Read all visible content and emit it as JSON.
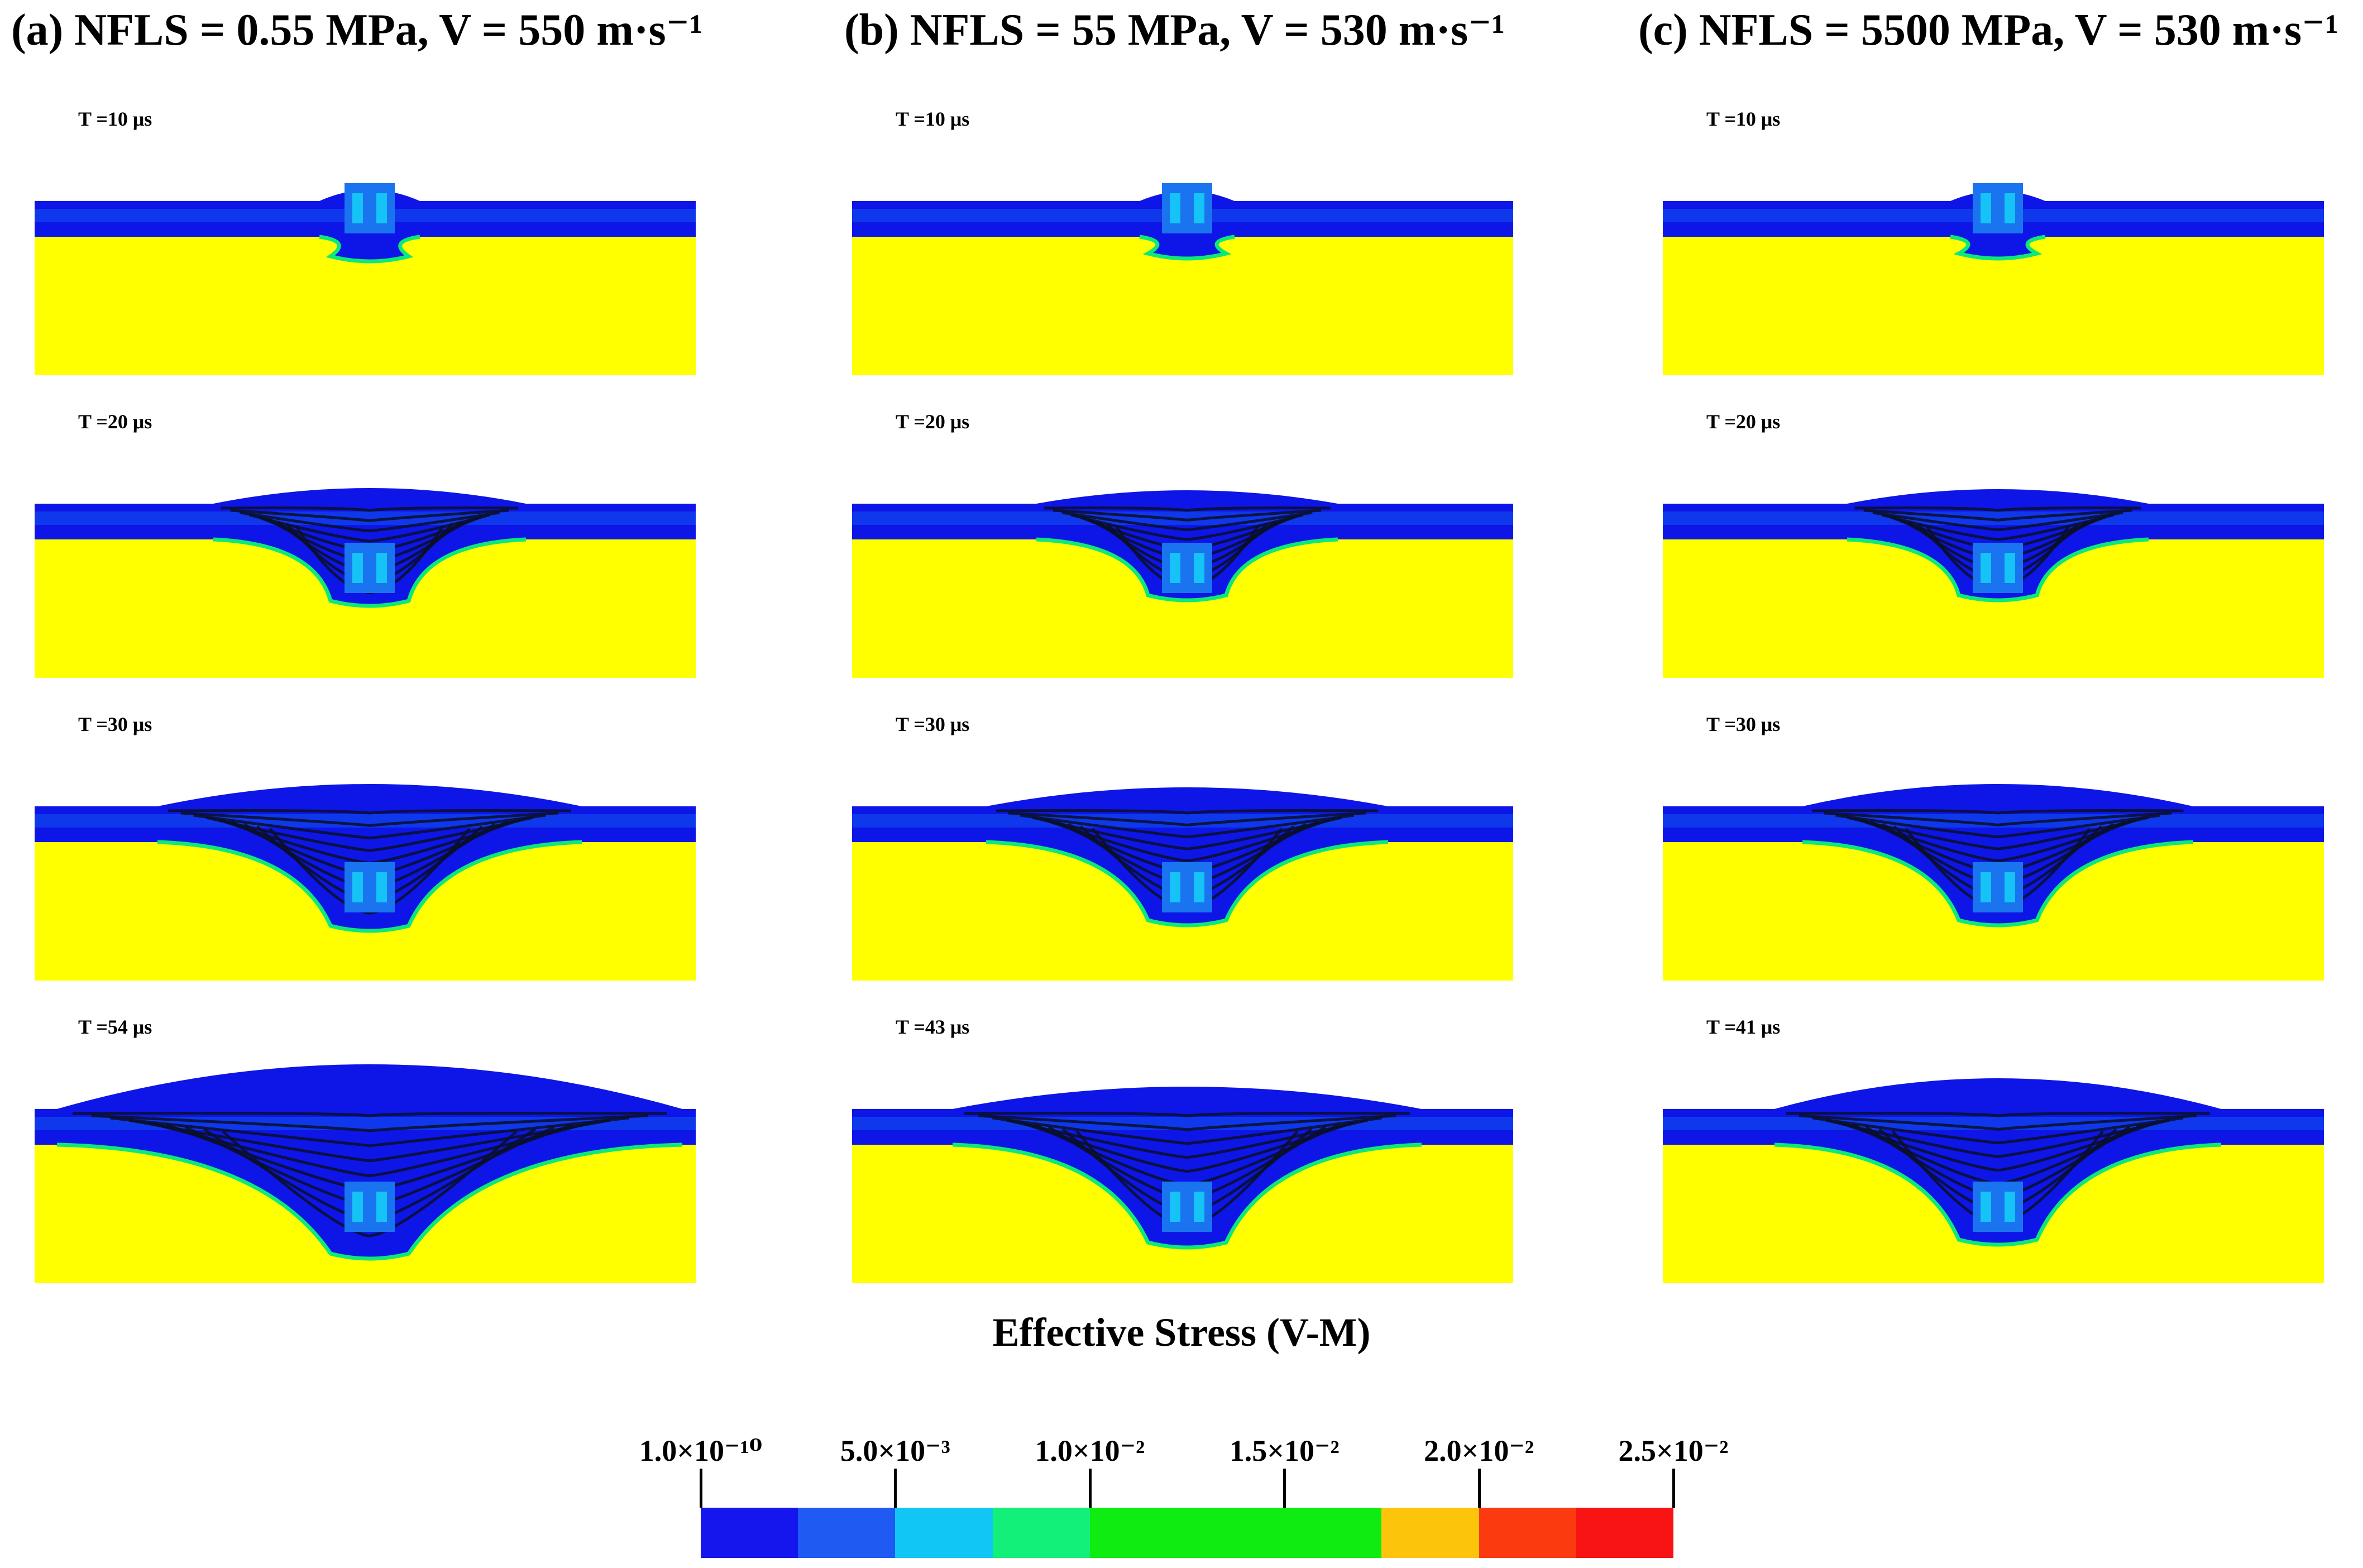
{
  "columns": [
    {
      "label": "(a) NFLS = 0.55 MPa, V = 550 m·s⁻¹",
      "times": [
        "T =10 μs",
        "T =20 μs",
        "T =30 μs",
        "T =54 μs"
      ]
    },
    {
      "label": "(b) NFLS = 55 MPa, V = 530 m·s⁻¹",
      "times": [
        "T =10 μs",
        "T =20 μs",
        "T =30 μs",
        "T =43 μs"
      ]
    },
    {
      "label": "(c) NFLS = 5500 MPa, V = 530 m·s⁻¹",
      "times": [
        "T =10 μs",
        "T =20 μs",
        "T =30 μs",
        "T =41 μs"
      ]
    }
  ],
  "legend": {
    "title": "Effective Stress (V-M)",
    "ticks": [
      "1.0×10⁻¹⁰",
      "5.0×10⁻³",
      "1.0×10⁻²",
      "1.5×10⁻²",
      "2.0×10⁻²",
      "2.5×10⁻²"
    ],
    "colors": [
      "#1515ee",
      "#1f5af2",
      "#11c6f4",
      "#13f07a",
      "#0fec12",
      "#0fec12",
      "#0fec12",
      "#fcc40a",
      "#fb3a10",
      "#f81414"
    ]
  },
  "palette": {
    "plate": "#0d16e6",
    "plate_mid": "#1256f0",
    "substrate": "#ffff00",
    "projectile": "#1b74ef",
    "projectile_light": "#16c3f6",
    "crater_dark": "#0a0f28",
    "interface": "#0ee878"
  }
}
